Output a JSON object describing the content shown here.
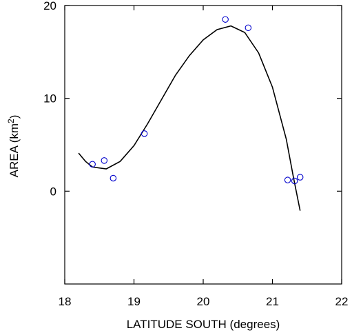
{
  "chart_data": {
    "type": "scatter",
    "xlabel": "LATITUDE SOUTH (degrees)",
    "ylabel_main": "AREA (km",
    "ylabel_sup": "2",
    "ylabel_close": ")",
    "xlim": [
      18,
      22
    ],
    "ylim": [
      -10,
      20
    ],
    "xticks": [
      18,
      19,
      20,
      21,
      22
    ],
    "yticks": [
      0,
      10,
      20
    ],
    "grid": false,
    "points_color": "#0000cc",
    "line_color": "#000000",
    "series": [
      {
        "kind": "points",
        "x": [
          18.4,
          18.57,
          18.7,
          19.15,
          20.32,
          20.65,
          21.22,
          21.32,
          21.4
        ],
        "y": [
          2.9,
          3.3,
          1.4,
          6.2,
          18.5,
          17.6,
          1.2,
          1.1,
          1.5
        ]
      },
      {
        "kind": "curve",
        "x": [
          18.2,
          18.3,
          18.4,
          18.5,
          18.6,
          18.8,
          19.0,
          19.2,
          19.4,
          19.6,
          19.8,
          20.0,
          20.2,
          20.4,
          20.6,
          20.8,
          21.0,
          21.2,
          21.3,
          21.4
        ],
        "y": [
          4.1,
          3.2,
          2.6,
          2.5,
          2.4,
          3.2,
          4.9,
          7.3,
          9.9,
          12.5,
          14.6,
          16.3,
          17.4,
          17.8,
          17.1,
          14.9,
          11.2,
          5.6,
          1.6,
          -2.1
        ]
      }
    ]
  }
}
